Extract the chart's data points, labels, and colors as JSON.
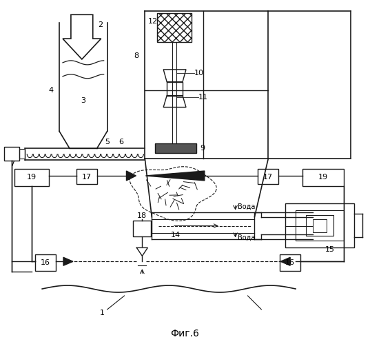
{
  "title": "Фиг.6",
  "bg_color": "#ffffff",
  "line_color": "#1a1a1a",
  "fig_width": 5.37,
  "fig_height": 4.99,
  "dpi": 100
}
